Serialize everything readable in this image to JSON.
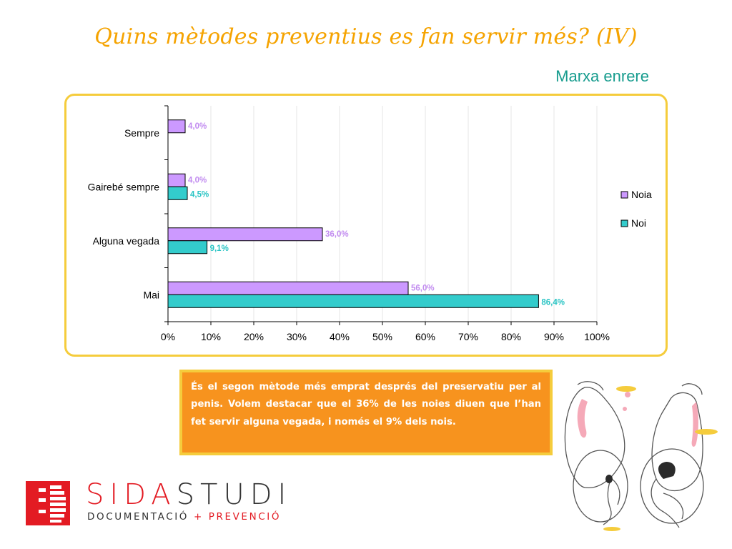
{
  "slide": {
    "title": "Quins mètodes preventius es fan servir més? (IV)",
    "subtitle": "Marxa enrere"
  },
  "chart_data": {
    "type": "bar",
    "orientation": "horizontal",
    "categories": [
      "Sempre",
      "Gairebé sempre",
      "Alguna vegada",
      "Mai"
    ],
    "series": [
      {
        "name": "Noia",
        "color": "#cc99ff",
        "label_color": "#c28cf0",
        "values": [
          4.0,
          4.0,
          36.0,
          56.0
        ],
        "labels": [
          "4,0%",
          "4,0%",
          "36,0%",
          "56,0%"
        ]
      },
      {
        "name": "Noi",
        "color": "#33cccc",
        "label_color": "#29c4c4",
        "values": [
          null,
          4.5,
          9.1,
          86.4
        ],
        "labels": [
          "",
          "4,5%",
          "9,1%",
          "86,4%"
        ]
      }
    ],
    "x_ticks": [
      "0%",
      "10%",
      "20%",
      "30%",
      "40%",
      "50%",
      "60%",
      "70%",
      "80%",
      "90%",
      "100%"
    ],
    "xlim": [
      0,
      100
    ],
    "grid": true,
    "legend_position": "right"
  },
  "note": {
    "text": "És el segon mètode més emprat després del preservatiu per al penis. Volem destacar que el 36% de les noies diuen que l’han fet servir alguna vegada, i només el 9% dels nois."
  },
  "logo": {
    "name_part1": "SIDA",
    "name_part2": "STUDI",
    "tagline_part1": "DOCUMENTACIÓ",
    "tagline_plus": " + ",
    "tagline_part2": "PREVENCIÓ"
  },
  "colors": {
    "title": "#f5a300",
    "subtitle": "#179c8e",
    "frame_border": "#f5cc3c",
    "note_background": "#f7931e",
    "brand_red": "#e31b23"
  },
  "icons": {
    "logo_mark": "sidastudi-logo-mark",
    "illustration": "condom-figures-illustration"
  }
}
